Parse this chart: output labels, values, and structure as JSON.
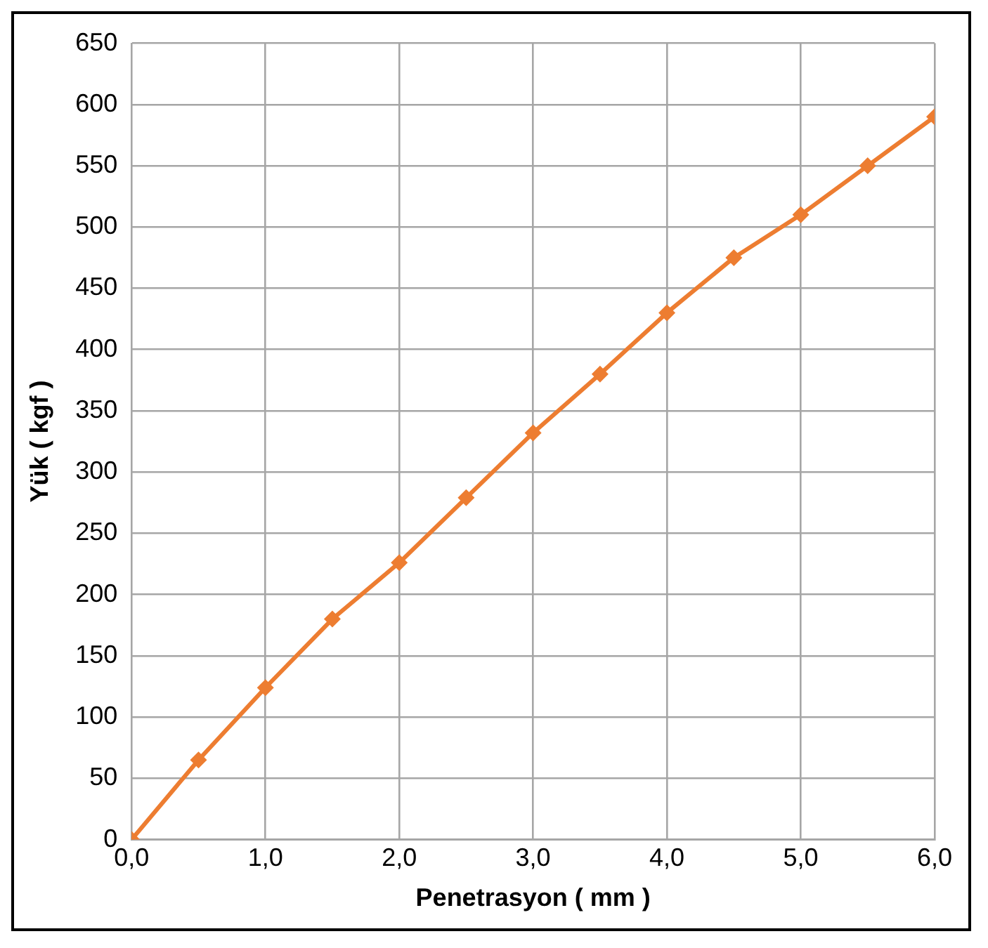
{
  "chart_data": {
    "type": "line",
    "xlabel": "Penetrasyon ( mm )",
    "ylabel": "Yük ( kgf )",
    "x": [
      0,
      0.5,
      1,
      1.5,
      2,
      2.5,
      3,
      3.5,
      4,
      4.5,
      5,
      5.5,
      6
    ],
    "series": [
      {
        "color": "#ed7d31",
        "values": [
          0,
          65,
          124,
          180,
          226,
          279,
          332,
          380,
          430,
          475,
          510,
          550,
          590
        ]
      }
    ],
    "xlim": [
      0,
      6
    ],
    "xticks": [
      {
        "value": 0,
        "label": "0,0"
      },
      {
        "value": 1,
        "label": "1,0"
      },
      {
        "value": 2,
        "label": "2,0"
      },
      {
        "value": 3,
        "label": "3,0"
      },
      {
        "value": 4,
        "label": "4,0"
      },
      {
        "value": 5,
        "label": "5,0"
      },
      {
        "value": 6,
        "label": "6,0"
      }
    ],
    "ylim": [
      0,
      650
    ],
    "yticks": [
      0,
      50,
      100,
      150,
      200,
      250,
      300,
      350,
      400,
      450,
      500,
      550,
      600,
      650
    ],
    "grid": true,
    "legend": false,
    "marker": "diamond",
    "line_style": "solid"
  }
}
